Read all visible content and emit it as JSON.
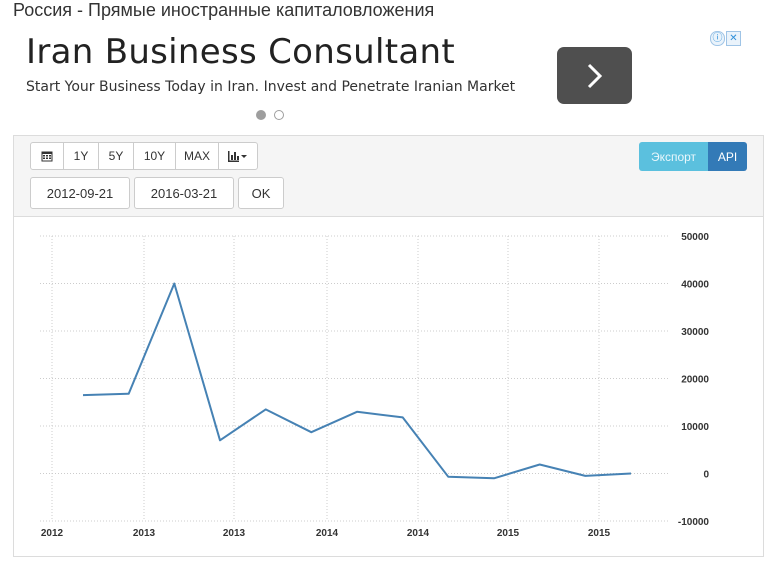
{
  "page": {
    "title": "Россия - Прямые иностранные капиталовложения"
  },
  "ad": {
    "title": "Iran Business Consultant",
    "subtitle": "Start Your Business Today in Iran. Invest and Penetrate Iranian Market",
    "arrow_icon": "chevron-right-icon",
    "info_icon": "ⓘ",
    "close_icon": "✕"
  },
  "toolbar": {
    "calendar_icon": "calendar-icon",
    "ranges": [
      "1Y",
      "5Y",
      "10Y",
      "MAX"
    ],
    "chart_type_icon": "bar-chart-icon",
    "start_date": "2012-09-21",
    "end_date": "2016-03-21",
    "ok_label": "OK",
    "export_label": "Экспорт",
    "api_label": "API"
  },
  "colors": {
    "line": "#4682b4",
    "export": "#5bc0de",
    "api": "#337ab7",
    "grid": "#cccccc"
  },
  "chart_data": {
    "type": "line",
    "title": "",
    "xlabel": "",
    "ylabel": "",
    "x_tick_labels": [
      "2012",
      "2013",
      "2013",
      "2014",
      "2014",
      "2015",
      "2015"
    ],
    "y_ticks": [
      50000,
      40000,
      30000,
      20000,
      10000,
      0,
      -10000
    ],
    "ylim": [
      -10000,
      50000
    ],
    "x": [
      "2012-06",
      "2012-09",
      "2012-12",
      "2013-03",
      "2013-06",
      "2013-09",
      "2013-12",
      "2014-03",
      "2014-06",
      "2014-09",
      "2014-12",
      "2015-03",
      "2015-06"
    ],
    "values": [
      16500,
      16800,
      40000,
      7000,
      13500,
      8700,
      13000,
      11800,
      -700,
      -1000,
      1900,
      -500,
      0
    ],
    "grid": true,
    "y_axis_position": "right"
  }
}
